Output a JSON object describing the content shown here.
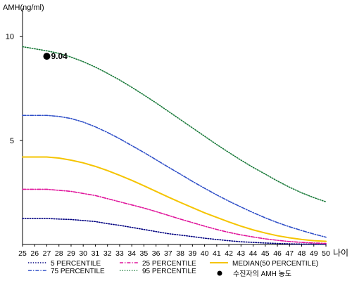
{
  "chart_data": {
    "type": "line",
    "ylabel": "AMH(ng/ml)",
    "xlabel": "나이",
    "xlim": [
      25,
      50
    ],
    "ylim": [
      0,
      11
    ],
    "x": [
      25,
      26,
      27,
      28,
      29,
      30,
      31,
      32,
      33,
      34,
      35,
      36,
      37,
      38,
      39,
      40,
      41,
      42,
      43,
      44,
      45,
      46,
      47,
      48,
      49,
      50
    ],
    "x_tick_labels": [
      "25",
      "26",
      "27",
      "28",
      "29",
      "30",
      "31",
      "32",
      "33",
      "34",
      "35",
      "36",
      "37",
      "38",
      "39",
      "40",
      "41",
      "42",
      "43",
      "44",
      "45",
      "46",
      "47",
      "48",
      "49",
      "50"
    ],
    "y_ticks": [
      5,
      10
    ],
    "y_tick_labels": [
      "5",
      "10"
    ],
    "grid": false,
    "legend_position": "bottom",
    "series": [
      {
        "name": "5 PERCENTILE",
        "color": "#000080",
        "dash": "dot",
        "values": [
          1.25,
          1.25,
          1.25,
          1.22,
          1.2,
          1.15,
          1.1,
          1.0,
          0.92,
          0.82,
          0.72,
          0.62,
          0.52,
          0.45,
          0.38,
          0.3,
          0.24,
          0.18,
          0.13,
          0.1,
          0.07,
          0.05,
          0.03,
          0.02,
          0.02,
          0.01
        ]
      },
      {
        "name": "25 PERCENTILE",
        "color": "#e0149b",
        "dash": "dashdot",
        "values": [
          2.65,
          2.65,
          2.65,
          2.6,
          2.55,
          2.45,
          2.35,
          2.2,
          2.05,
          1.9,
          1.75,
          1.58,
          1.4,
          1.22,
          1.05,
          0.88,
          0.72,
          0.58,
          0.46,
          0.36,
          0.27,
          0.2,
          0.14,
          0.1,
          0.07,
          0.05
        ]
      },
      {
        "name": "MEDIAN(50 PERCENTILE)",
        "color": "#f5c400",
        "dash": "solid",
        "values": [
          4.2,
          4.2,
          4.2,
          4.15,
          4.05,
          3.92,
          3.75,
          3.55,
          3.32,
          3.08,
          2.82,
          2.55,
          2.28,
          2.02,
          1.77,
          1.52,
          1.3,
          1.08,
          0.88,
          0.7,
          0.55,
          0.42,
          0.32,
          0.24,
          0.18,
          0.15
        ]
      },
      {
        "name": "75 PERCENTILE",
        "color": "#3050c8",
        "dash": "dashdot",
        "values": [
          6.2,
          6.2,
          6.2,
          6.15,
          6.05,
          5.88,
          5.65,
          5.38,
          5.08,
          4.75,
          4.42,
          4.07,
          3.72,
          3.38,
          3.03,
          2.7,
          2.38,
          2.08,
          1.8,
          1.53,
          1.28,
          1.05,
          0.85,
          0.67,
          0.5,
          0.35
        ]
      },
      {
        "name": "95 PERCENTILE",
        "color": "#1a7a3a",
        "dash": "dot",
        "values": [
          9.5,
          9.4,
          9.3,
          9.18,
          9.0,
          8.78,
          8.52,
          8.22,
          7.9,
          7.55,
          7.18,
          6.8,
          6.4,
          6.0,
          5.6,
          5.2,
          4.8,
          4.42,
          4.05,
          3.7,
          3.38,
          3.05,
          2.75,
          2.48,
          2.25,
          2.05
        ]
      }
    ],
    "marker": {
      "name": "수진자의 AMH 농도",
      "x": 27,
      "y": 9.04,
      "label": "9.04",
      "color": "#000000"
    }
  }
}
